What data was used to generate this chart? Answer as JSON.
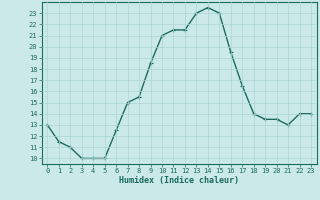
{
  "x": [
    0,
    1,
    2,
    3,
    4,
    5,
    6,
    7,
    8,
    9,
    10,
    11,
    12,
    13,
    14,
    15,
    16,
    17,
    18,
    19,
    20,
    21,
    22,
    23
  ],
  "y": [
    13,
    11.5,
    11,
    10,
    10,
    10,
    12.5,
    15,
    15.5,
    18.5,
    21,
    21.5,
    21.5,
    23,
    23.5,
    23,
    19.5,
    16.5,
    14,
    13.5,
    13.5,
    13,
    14,
    14
  ],
  "line_color": "#1a6b5e",
  "marker": "+",
  "marker_size": 3,
  "marker_linewidth": 0.8,
  "bg_color": "#cce9e9",
  "grid_color": "#aad4d4",
  "xlabel": "Humidex (Indice chaleur)",
  "xlim": [
    -0.5,
    23.5
  ],
  "ylim": [
    9.5,
    24
  ],
  "xticks": [
    0,
    1,
    2,
    3,
    4,
    5,
    6,
    7,
    8,
    9,
    10,
    11,
    12,
    13,
    14,
    15,
    16,
    17,
    18,
    19,
    20,
    21,
    22,
    23
  ],
  "yticks": [
    10,
    11,
    12,
    13,
    14,
    15,
    16,
    17,
    18,
    19,
    20,
    21,
    22,
    23
  ],
  "tick_label_fontsize": 5,
  "xlabel_fontsize": 6,
  "line_width": 1.0,
  "spine_color": "#1a6b5e"
}
